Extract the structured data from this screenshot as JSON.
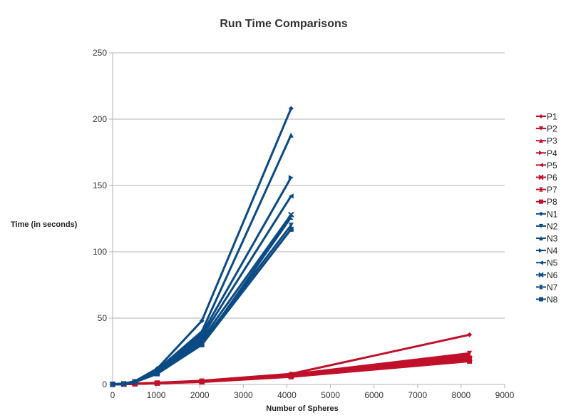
{
  "chart_data": {
    "type": "line",
    "title": "Run Time Comparisons",
    "xlabel": "Number of Spheres",
    "ylabel": "Time (in seconds)",
    "xlim": [
      0,
      9000
    ],
    "ylim": [
      0,
      250
    ],
    "x_ticks": [
      0,
      1000,
      2000,
      3000,
      4000,
      5000,
      6000,
      7000,
      8000,
      9000
    ],
    "y_ticks": [
      0,
      50,
      100,
      150,
      200,
      250
    ],
    "grid": "horizontal",
    "legend_position": "right",
    "colors": {
      "P": "#c0102a",
      "N": "#0b4a84"
    },
    "series": [
      {
        "name": "P1",
        "group": "P",
        "marker": "diamond",
        "x": [
          0,
          256,
          512,
          1024,
          2048,
          4096,
          8192
        ],
        "y": [
          0.1,
          0.3,
          0.6,
          1.3,
          2.8,
          8,
          37.5
        ]
      },
      {
        "name": "P2",
        "group": "P",
        "marker": "tri-down",
        "x": [
          0,
          256,
          512,
          1024,
          2048,
          4096,
          8192
        ],
        "y": [
          0.1,
          0.3,
          0.6,
          1.2,
          2.6,
          7.5,
          23.5
        ]
      },
      {
        "name": "P3",
        "group": "P",
        "marker": "tri-up",
        "x": [
          0,
          256,
          512,
          1024,
          2048,
          4096,
          8192
        ],
        "y": [
          0.1,
          0.3,
          0.5,
          1.1,
          2.4,
          7,
          22
        ]
      },
      {
        "name": "P4",
        "group": "P",
        "marker": "tri-right",
        "x": [
          0,
          256,
          512,
          1024,
          2048,
          4096,
          8192
        ],
        "y": [
          0.1,
          0.3,
          0.5,
          1.1,
          2.3,
          6.8,
          21
        ]
      },
      {
        "name": "P5",
        "group": "P",
        "marker": "tri-left",
        "x": [
          0,
          256,
          512,
          1024,
          2048,
          4096,
          8192
        ],
        "y": [
          0.1,
          0.2,
          0.5,
          1,
          2.2,
          6.5,
          20
        ]
      },
      {
        "name": "P6",
        "group": "P",
        "marker": "x",
        "x": [
          0,
          256,
          512,
          1024,
          2048,
          4096,
          8192
        ],
        "y": [
          0.1,
          0.2,
          0.5,
          1,
          2.1,
          6.3,
          19.5
        ]
      },
      {
        "name": "P7",
        "group": "P",
        "marker": "bowtie",
        "x": [
          0,
          256,
          512,
          1024,
          2048,
          4096,
          8192
        ],
        "y": [
          0.1,
          0.2,
          0.5,
          1,
          2,
          6,
          18.5
        ]
      },
      {
        "name": "P8",
        "group": "P",
        "marker": "square",
        "x": [
          0,
          256,
          512,
          1024,
          2048,
          4096,
          8192
        ],
        "y": [
          0.1,
          0.2,
          0.4,
          0.9,
          1.9,
          5.8,
          17.5
        ]
      },
      {
        "name": "N1",
        "group": "N",
        "marker": "diamond",
        "x": [
          0,
          256,
          512,
          1024,
          2048,
          4096
        ],
        "y": [
          0.1,
          0.6,
          2.5,
          12,
          48,
          208
        ]
      },
      {
        "name": "N2",
        "group": "N",
        "marker": "tri-down",
        "x": [
          0,
          256,
          512,
          1024,
          2048,
          4096
        ],
        "y": [
          0.1,
          0.5,
          2,
          9,
          32,
          120
        ]
      },
      {
        "name": "N3",
        "group": "N",
        "marker": "tri-up",
        "x": [
          0,
          256,
          512,
          1024,
          2048,
          4096
        ],
        "y": [
          0.1,
          0.6,
          2.4,
          11,
          40,
          188
        ]
      },
      {
        "name": "N4",
        "group": "N",
        "marker": "tri-right",
        "x": [
          0,
          256,
          512,
          1024,
          2048,
          4096
        ],
        "y": [
          0.1,
          0.6,
          2.2,
          10.5,
          38,
          156
        ]
      },
      {
        "name": "N5",
        "group": "N",
        "marker": "tri-left",
        "x": [
          0,
          256,
          512,
          1024,
          2048,
          4096
        ],
        "y": [
          0.1,
          0.5,
          2.1,
          10,
          36,
          142
        ]
      },
      {
        "name": "N6",
        "group": "N",
        "marker": "x",
        "x": [
          0,
          256,
          512,
          1024,
          2048,
          4096
        ],
        "y": [
          0.1,
          0.5,
          2,
          9.5,
          34,
          128
        ]
      },
      {
        "name": "N7",
        "group": "N",
        "marker": "bowtie",
        "x": [
          0,
          256,
          512,
          1024,
          2048,
          4096
        ],
        "y": [
          0.1,
          0.5,
          1.9,
          8.5,
          30,
          126
        ]
      },
      {
        "name": "N8",
        "group": "N",
        "marker": "square",
        "x": [
          0,
          256,
          512,
          1024,
          2048,
          4096
        ],
        "y": [
          0.1,
          0.4,
          1.8,
          8,
          30,
          117
        ]
      }
    ]
  }
}
